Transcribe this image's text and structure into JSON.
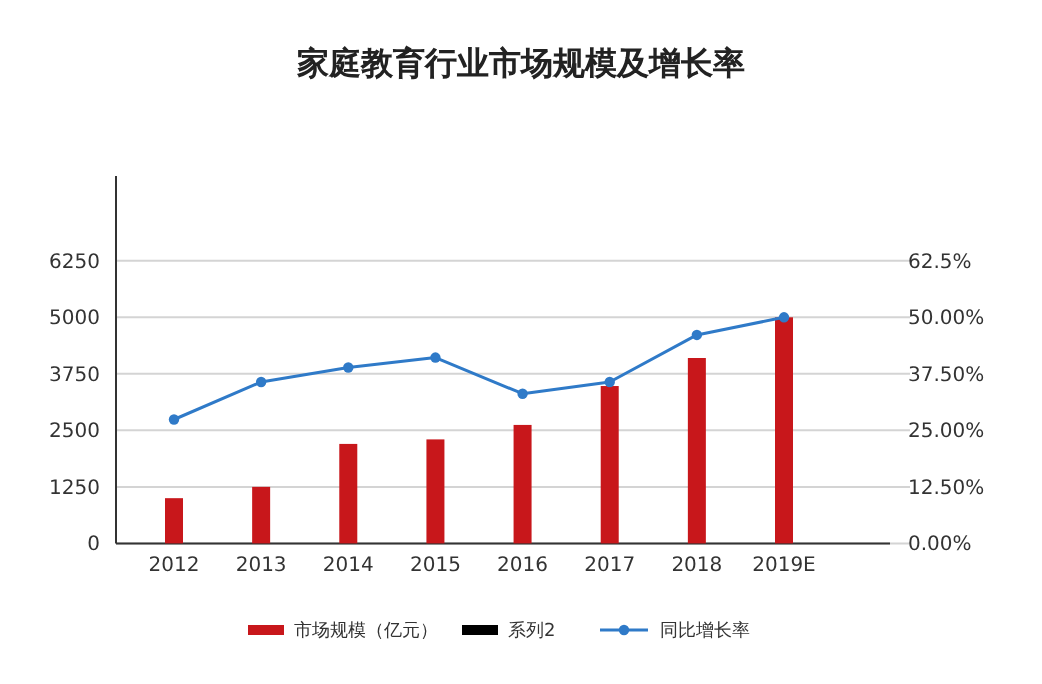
{
  "chart_data": {
    "type": "bar",
    "title": "家庭教育行业市场规模及增长率",
    "categories": [
      "2012",
      "2013",
      "2014",
      "2015",
      "2016",
      "2017",
      "2018",
      "2019E"
    ],
    "series": [
      {
        "name": "市场规模（亿元）",
        "color": "#c8171b",
        "values": [
          1000,
          1250,
          2200,
          2300,
          2620,
          3480,
          4100,
          5000
        ]
      },
      {
        "name": "系列2",
        "color": "#000000",
        "values": [
          null,
          null,
          null,
          null,
          null,
          null,
          null,
          null
        ]
      },
      {
        "name": "同比增长率",
        "type": "line",
        "axis": "y2",
        "color": "#2f7ac8",
        "marker": "circle",
        "values": [
          27.4,
          35.7,
          38.9,
          41.1,
          33.1,
          35.7,
          46.1,
          50.0
        ]
      }
    ],
    "ylim": [
      0,
      8125
    ],
    "yticks": [
      0,
      1250,
      2500,
      3750,
      5000,
      6250
    ],
    "y2lim": [
      0,
      81.25
    ],
    "y2ticks": [
      {
        "value": 0,
        "label": "0.00%"
      },
      {
        "value": 12.5,
        "label": "12.50%"
      },
      {
        "value": 25,
        "label": "25.00%"
      },
      {
        "value": 37.5,
        "label": "37.50%"
      },
      {
        "value": 50,
        "label": "50.00%"
      },
      {
        "value": 62.5,
        "label": "62.5%"
      }
    ],
    "grid": "y",
    "legend": "bottom"
  }
}
